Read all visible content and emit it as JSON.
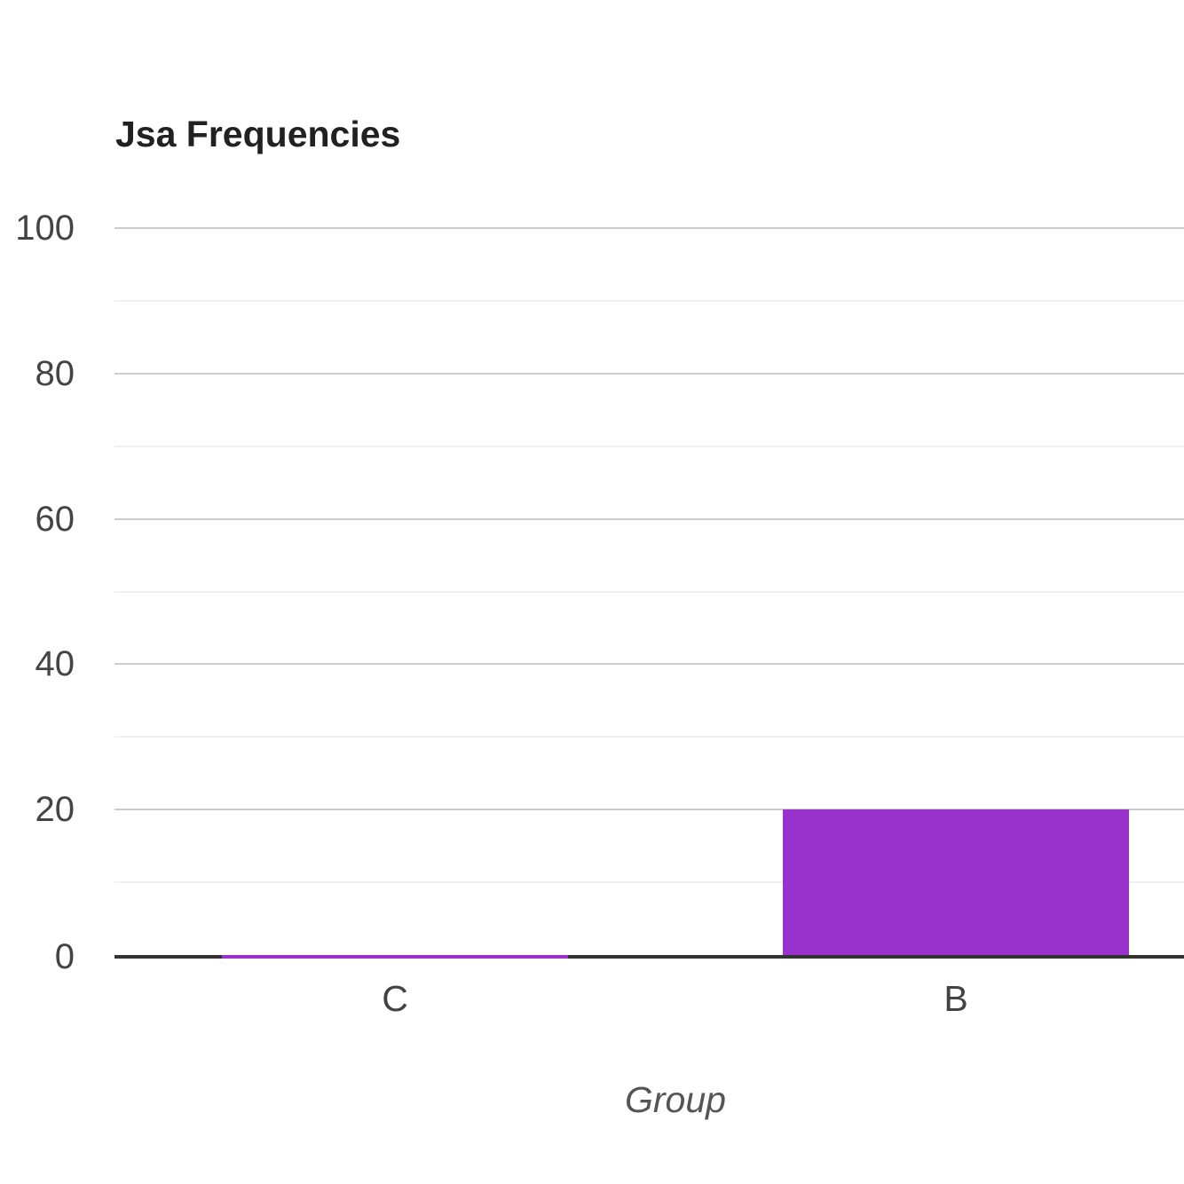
{
  "chart_data": {
    "type": "bar",
    "title": "Jsa Frequencies",
    "xlabel": "Group",
    "ylabel": "",
    "categories": [
      "C",
      "B"
    ],
    "values": [
      0,
      20
    ],
    "ylim": [
      0,
      100
    ],
    "yticks": [
      0,
      20,
      40,
      60,
      80,
      100
    ],
    "minor_gridlines": true,
    "legend": "none",
    "colors": {
      "bar": "#9932cc",
      "major_gridline": "#cccccc",
      "minor_gridline": "#f0f0f0",
      "axis_line": "#333333",
      "title_text": "#212121",
      "tick_text": "#444444",
      "category_text": "#424242",
      "axis_title_text": "#555555"
    }
  }
}
